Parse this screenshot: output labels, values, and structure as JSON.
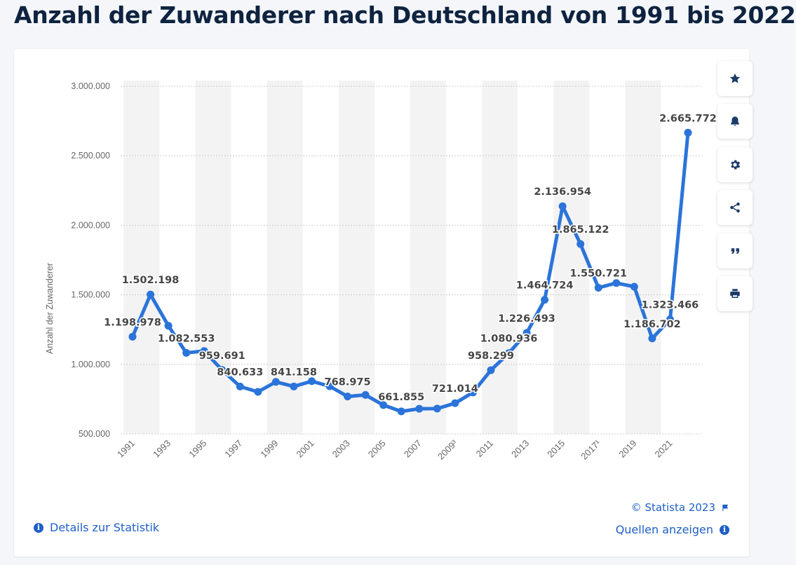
{
  "page": {
    "title": "Anzahl der Zuwanderer nach Deutschland von 1991 bis 2022"
  },
  "toolbar": {
    "items": [
      {
        "name": "favorite",
        "icon": "star-icon"
      },
      {
        "name": "notification",
        "icon": "bell-icon"
      },
      {
        "name": "settings",
        "icon": "gear-icon"
      },
      {
        "name": "share",
        "icon": "share-icon"
      },
      {
        "name": "cite",
        "icon": "quote-icon"
      },
      {
        "name": "print",
        "icon": "print-icon"
      }
    ]
  },
  "footer": {
    "details_label": "Details zur Statistik",
    "copyright_label": "© Statista 2023",
    "sources_label": "Quellen anzeigen"
  },
  "colors": {
    "line": "#2b74d9",
    "band": "#f3f3f3",
    "grid": "#cfcfcf",
    "label": "#454545",
    "axis_text": "#666666",
    "link": "#1f5fc7"
  },
  "chart_data": {
    "type": "line",
    "title": "Anzahl der Zuwanderer nach Deutschland von 1991 bis 2022",
    "xlabel": "",
    "ylabel": "Anzahl der Zuwanderer",
    "ylim": [
      500000,
      3000000
    ],
    "y_ticks": [
      500000,
      1000000,
      1500000,
      2000000,
      2500000,
      3000000
    ],
    "y_tick_labels": [
      "500.000",
      "1.000.000",
      "1.500.000",
      "2.000.000",
      "2.500.000",
      "3.000.000"
    ],
    "grid": true,
    "legend": "none",
    "x": [
      1991,
      1992,
      1993,
      1994,
      1995,
      1996,
      1997,
      1998,
      1999,
      2000,
      2001,
      2002,
      2003,
      2004,
      2005,
      2006,
      2007,
      2008,
      2009,
      2010,
      2011,
      2012,
      2013,
      2014,
      2015,
      2016,
      2017,
      2018,
      2019,
      2020,
      2021,
      2022
    ],
    "x_tick_labels": [
      "1991",
      "1993",
      "1995",
      "1997",
      "1999",
      "2001",
      "2003",
      "2005",
      "2007",
      "2009³",
      "2011",
      "2013",
      "2015",
      "2017¹",
      "2019",
      "2021"
    ],
    "x_tick_years": [
      1991,
      1993,
      1995,
      1997,
      1999,
      2001,
      2003,
      2005,
      2007,
      2009,
      2011,
      2013,
      2015,
      2017,
      2019,
      2021
    ],
    "values": [
      1198978,
      1502198,
      1277408,
      1082553,
      1096048,
      959691,
      840633,
      802456,
      874023,
      841158,
      879217,
      842543,
      768975,
      780175,
      707352,
      661855,
      680766,
      682146,
      721014,
      798282,
      958299,
      1080936,
      1226493,
      1464724,
      2136954,
      1865122,
      1550721,
      1585112,
      1558612,
      1186702,
      1323466,
      2665772
    ],
    "data_labels": [
      {
        "year": 1991,
        "text": "1.198.978"
      },
      {
        "year": 1992,
        "text": "1.502.198"
      },
      {
        "year": 1994,
        "text": "1.082.553"
      },
      {
        "year": 1996,
        "text": "959.691"
      },
      {
        "year": 1997,
        "text": "840.633"
      },
      {
        "year": 2000,
        "text": "841.158"
      },
      {
        "year": 2003,
        "text": "768.975"
      },
      {
        "year": 2006,
        "text": "661.855"
      },
      {
        "year": 2009,
        "text": "721.014"
      },
      {
        "year": 2011,
        "text": "958.299"
      },
      {
        "year": 2012,
        "text": "1.080.936"
      },
      {
        "year": 2013,
        "text": "1.226.493"
      },
      {
        "year": 2014,
        "text": "1.464.724"
      },
      {
        "year": 2015,
        "text": "2.136.954"
      },
      {
        "year": 2016,
        "text": "1.865.122"
      },
      {
        "year": 2017,
        "text": "1.550.721"
      },
      {
        "year": 2020,
        "text": "1.186.702"
      },
      {
        "year": 2021,
        "text": "1.323.466"
      },
      {
        "year": 2022,
        "text": "2.665.772"
      }
    ]
  }
}
